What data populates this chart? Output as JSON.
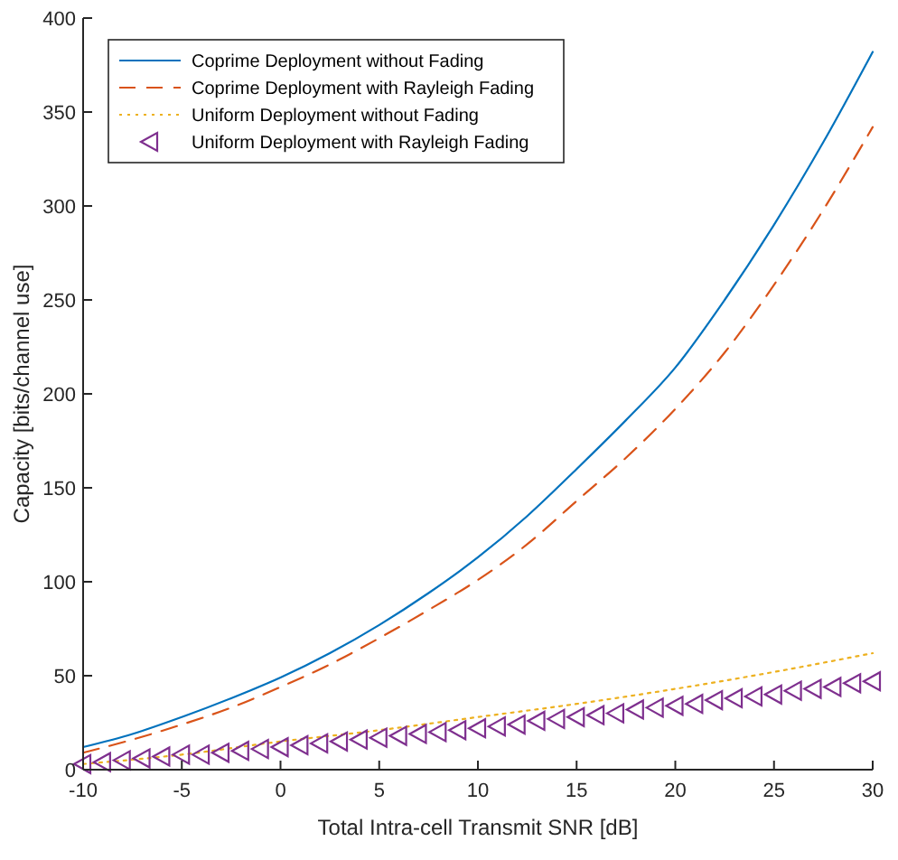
{
  "chart_data": {
    "type": "line",
    "xlabel": "Total Intra-cell Transmit SNR [dB]",
    "ylabel": "Capacity [bits/channel use]",
    "xlim": [
      -10,
      30
    ],
    "ylim": [
      0,
      400
    ],
    "xticks": [
      -10,
      -5,
      0,
      5,
      10,
      15,
      20,
      25,
      30
    ],
    "yticks": [
      0,
      50,
      100,
      150,
      200,
      250,
      300,
      350,
      400
    ],
    "legend": "top left",
    "grid": false,
    "series": [
      {
        "name": "Coprime Deployment without Fading",
        "color": "#0072bd",
        "line_style": "solid",
        "marker": "none",
        "x": [
          -10,
          -7.5,
          -5,
          -2.5,
          0,
          2.5,
          5,
          7.5,
          10,
          12.5,
          15,
          17.5,
          20,
          22.5,
          25,
          27.5,
          30
        ],
        "values": [
          12,
          19,
          28,
          38,
          49,
          62,
          77,
          94,
          113,
          135,
          160,
          186,
          214,
          250,
          290,
          334,
          382
        ]
      },
      {
        "name": "Coprime Deployment with Rayleigh Fading",
        "color": "#d95319",
        "line_style": "dashed",
        "marker": "none",
        "x": [
          -10,
          -7.5,
          -5,
          -2.5,
          0,
          2.5,
          5,
          7.5,
          10,
          12.5,
          15,
          17.5,
          20,
          22.5,
          25,
          27.5,
          30
        ],
        "values": [
          9,
          16,
          24,
          33,
          44,
          56,
          70,
          85,
          101,
          120,
          143,
          166,
          192,
          222,
          258,
          298,
          342
        ]
      },
      {
        "name": "Uniform Deployment without Fading",
        "color": "#edb120",
        "line_style": "dotted",
        "marker": "none",
        "x": [
          -10,
          -5,
          0,
          5,
          10,
          15,
          20,
          25,
          30
        ],
        "values": [
          3,
          8,
          15,
          21,
          28,
          35,
          43,
          52,
          62
        ]
      },
      {
        "name": "Uniform Deployment with Rayleigh Fading",
        "color": "#7e2f8e",
        "type": "scatter",
        "marker": "triangle",
        "x": [
          -10,
          -9,
          -8,
          -7,
          -6,
          -5,
          -4,
          -3,
          -2,
          -1,
          0,
          1,
          2,
          3,
          4,
          5,
          6,
          7,
          8,
          9,
          10,
          11,
          12,
          13,
          14,
          15,
          16,
          17,
          18,
          19,
          20,
          21,
          22,
          23,
          24,
          25,
          26,
          27,
          28,
          29,
          30
        ],
        "values": [
          3,
          4,
          5,
          6,
          7,
          8,
          8,
          9,
          10,
          11,
          12,
          13,
          14,
          15,
          16,
          17,
          18,
          19,
          20,
          21,
          22,
          23,
          24,
          26,
          27,
          28,
          29,
          30,
          32,
          33,
          34,
          35,
          37,
          38,
          39,
          40,
          42,
          43,
          44,
          46,
          47
        ]
      }
    ]
  }
}
